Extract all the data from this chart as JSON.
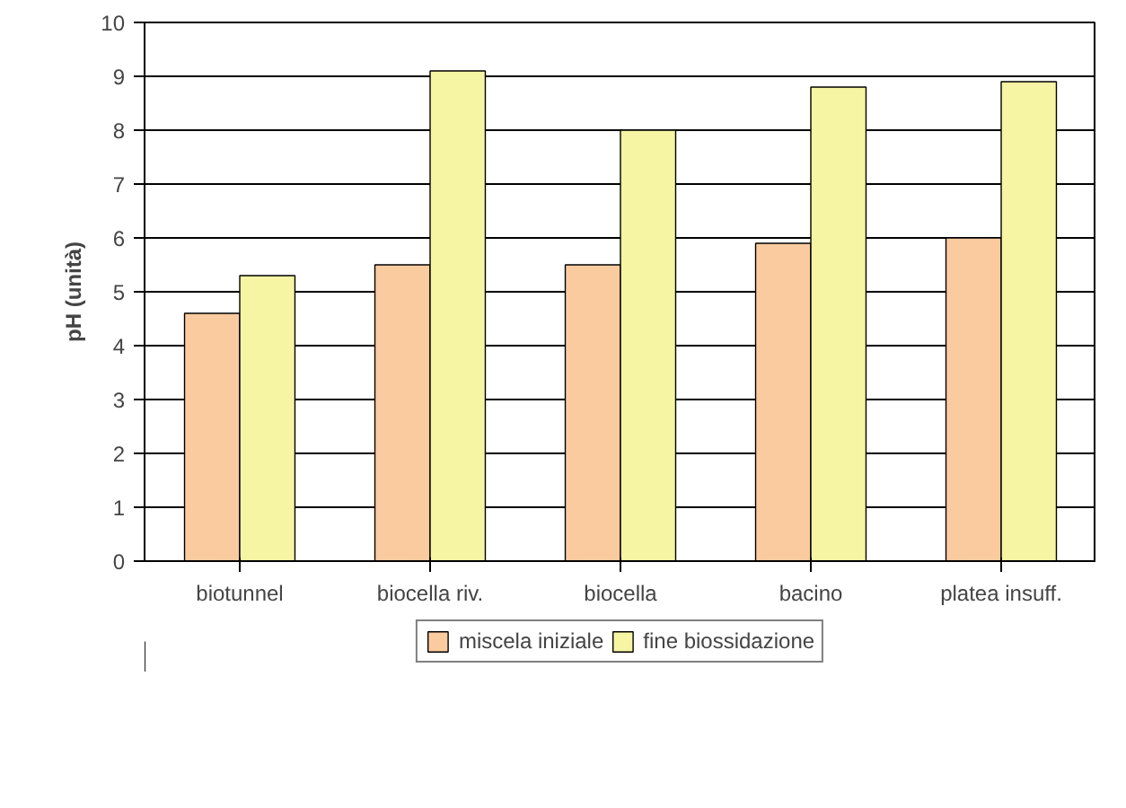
{
  "chart_data": {
    "type": "bar",
    "ylabel": "pH (unità)",
    "categories": [
      "biotunnel",
      "biocella riv.",
      "biocella",
      "bacino",
      "platea insuff."
    ],
    "series": [
      {
        "name": "miscela iniziale",
        "color": "#fbcba0",
        "values": [
          4.6,
          5.5,
          5.5,
          5.9,
          6.0
        ]
      },
      {
        "name": "fine biossidazione",
        "color": "#f5f5a3",
        "values": [
          5.3,
          9.1,
          8.0,
          8.8,
          8.9
        ]
      }
    ],
    "ylim": [
      0,
      10
    ],
    "yticks": [
      0,
      1,
      2,
      3,
      4,
      5,
      6,
      7,
      8,
      9,
      10
    ],
    "grid": "y",
    "legend": "bottom"
  }
}
